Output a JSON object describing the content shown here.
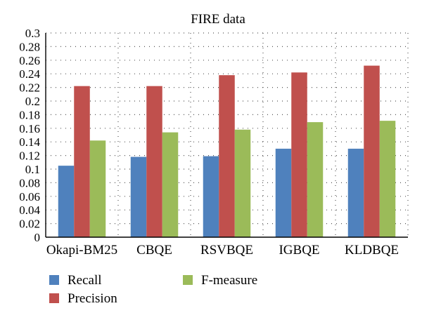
{
  "chart_data": {
    "type": "bar",
    "title": "FIRE data",
    "xlabel": "",
    "ylabel": "",
    "ylim": [
      0,
      0.3
    ],
    "ytick_step": 0.02,
    "yticks": [
      "0",
      "0.02",
      "0.04",
      "0.06",
      "0.08",
      "0.1",
      "0.12",
      "0.14",
      "0.16",
      "0.18",
      "0.2",
      "0.22",
      "0.24",
      "0.26",
      "0.28",
      "0.3"
    ],
    "grid": true,
    "legend_position": "bottom",
    "categories": [
      "Okapi-BM25",
      "CBQE",
      "RSVBQE",
      "IGBQE",
      "KLDBQE"
    ],
    "series": [
      {
        "name": "Recall",
        "color": "#4f81bd",
        "values": [
          0.105,
          0.118,
          0.119,
          0.13,
          0.13
        ]
      },
      {
        "name": "Precision",
        "color": "#c0504d",
        "values": [
          0.222,
          0.222,
          0.238,
          0.242,
          0.252
        ]
      },
      {
        "name": "F-measure",
        "color": "#9bbb59",
        "values": [
          0.142,
          0.154,
          0.158,
          0.169,
          0.171
        ]
      }
    ]
  }
}
